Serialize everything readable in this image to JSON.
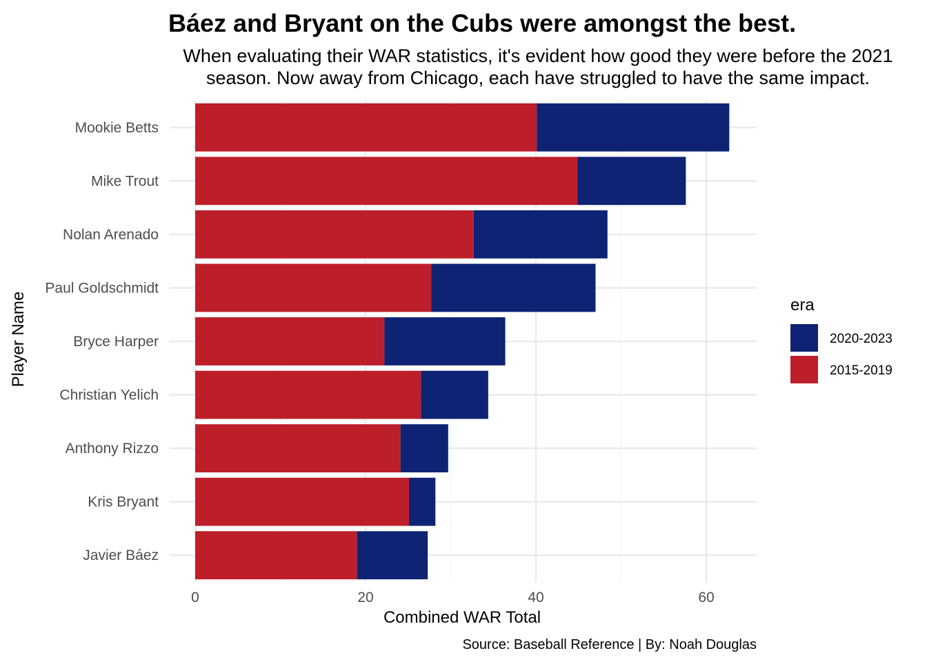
{
  "chart_data": {
    "type": "bar",
    "orientation": "horizontal",
    "stacked": true,
    "title": "Báez and Bryant on the Cubs were amongst the best.",
    "subtitle_lines": [
      "When evaluating their WAR statistics, it's evident how good they were before the 2021",
      "season. Now away from Chicago, each have struggled to have the same impact."
    ],
    "caption": "Source: Baseball Reference | By: Noah Douglas",
    "xlabel": "Combined WAR Total",
    "ylabel": "Player Name",
    "xlim": [
      0,
      65
    ],
    "x_ticks": [
      0,
      20,
      40,
      60
    ],
    "grid": true,
    "legend": {
      "title": "era",
      "position": "right"
    },
    "categories": [
      "Mookie Betts",
      "Mike Trout",
      "Nolan Arenado",
      "Paul Goldschmidt",
      "Bryce Harper",
      "Christian Yelich",
      "Anthony Rizzo",
      "Kris Bryant",
      "Javier Báez"
    ],
    "series": [
      {
        "name": "2015-2019",
        "color": "#BD1F2A",
        "values": [
          40.1,
          44.9,
          32.7,
          27.7,
          22.2,
          26.5,
          24.1,
          25.1,
          19.0
        ]
      },
      {
        "name": "2020-2023",
        "color": "#0E2373",
        "values": [
          22.6,
          12.7,
          15.7,
          19.3,
          14.2,
          7.9,
          5.6,
          3.1,
          8.3
        ]
      }
    ],
    "legend_order": [
      "2020-2023",
      "2015-2019"
    ]
  }
}
